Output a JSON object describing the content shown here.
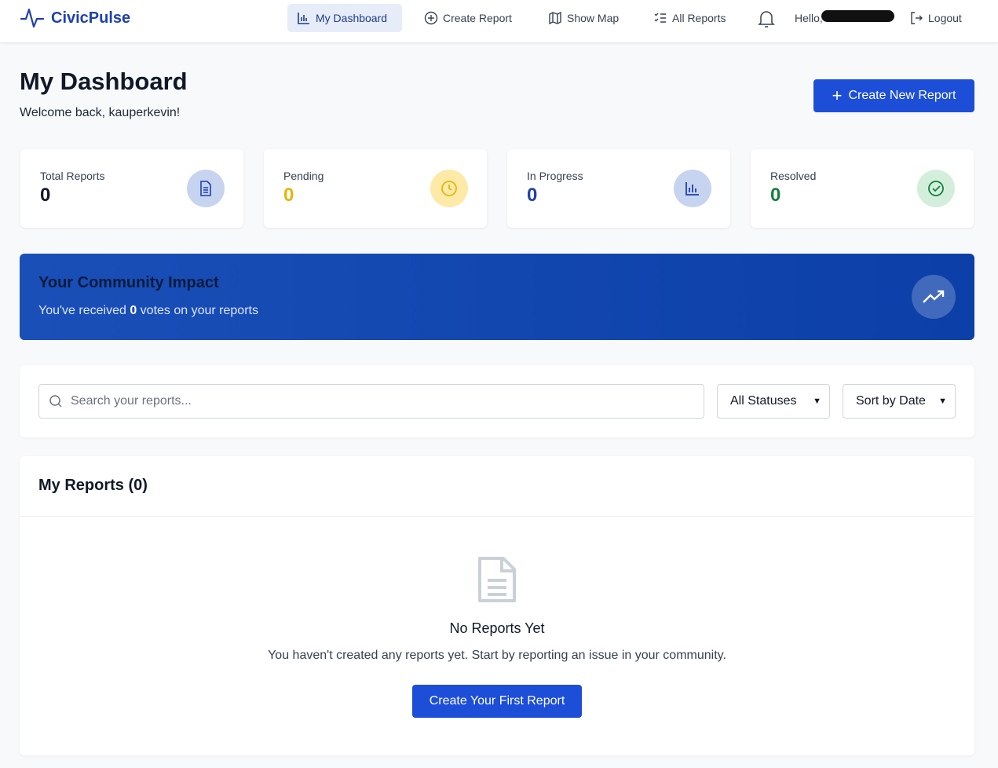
{
  "nav": {
    "brand": "CivicPulse",
    "items": [
      {
        "label": "My Dashboard",
        "icon": "bar-chart-icon",
        "active": true
      },
      {
        "label": "Create Report",
        "icon": "plus-circle-icon"
      },
      {
        "label": "Show Map",
        "icon": "map-icon"
      },
      {
        "label": "All Reports",
        "icon": "list-check-icon"
      }
    ],
    "greeting": "Hello,",
    "logout": "Logout"
  },
  "header": {
    "title": "My Dashboard",
    "welcome": "Welcome back, kauperkevin!",
    "create_button": "Create New Report"
  },
  "stats": [
    {
      "label": "Total Reports",
      "value": "0",
      "color": "#111827",
      "icon": "document-icon"
    },
    {
      "label": "Pending",
      "value": "0",
      "color": "#eab308",
      "icon": "clock-icon"
    },
    {
      "label": "In Progress",
      "value": "0",
      "color": "#1e40af",
      "icon": "bar-chart-icon"
    },
    {
      "label": "Resolved",
      "value": "0",
      "color": "#15803d",
      "icon": "check-circle-icon"
    }
  ],
  "impact": {
    "title": "Your Community Impact",
    "prefix": "You've received ",
    "votes": "0",
    "suffix": " votes on your reports"
  },
  "filters": {
    "search_placeholder": "Search your reports...",
    "status": "All Statuses",
    "sort": "Sort by Date"
  },
  "reports": {
    "title": "My Reports (0)",
    "empty_title": "No Reports Yet",
    "empty_text": "You haven't created any reports yet. Start by reporting an issue in your community.",
    "cta": "Create Your First Report"
  }
}
